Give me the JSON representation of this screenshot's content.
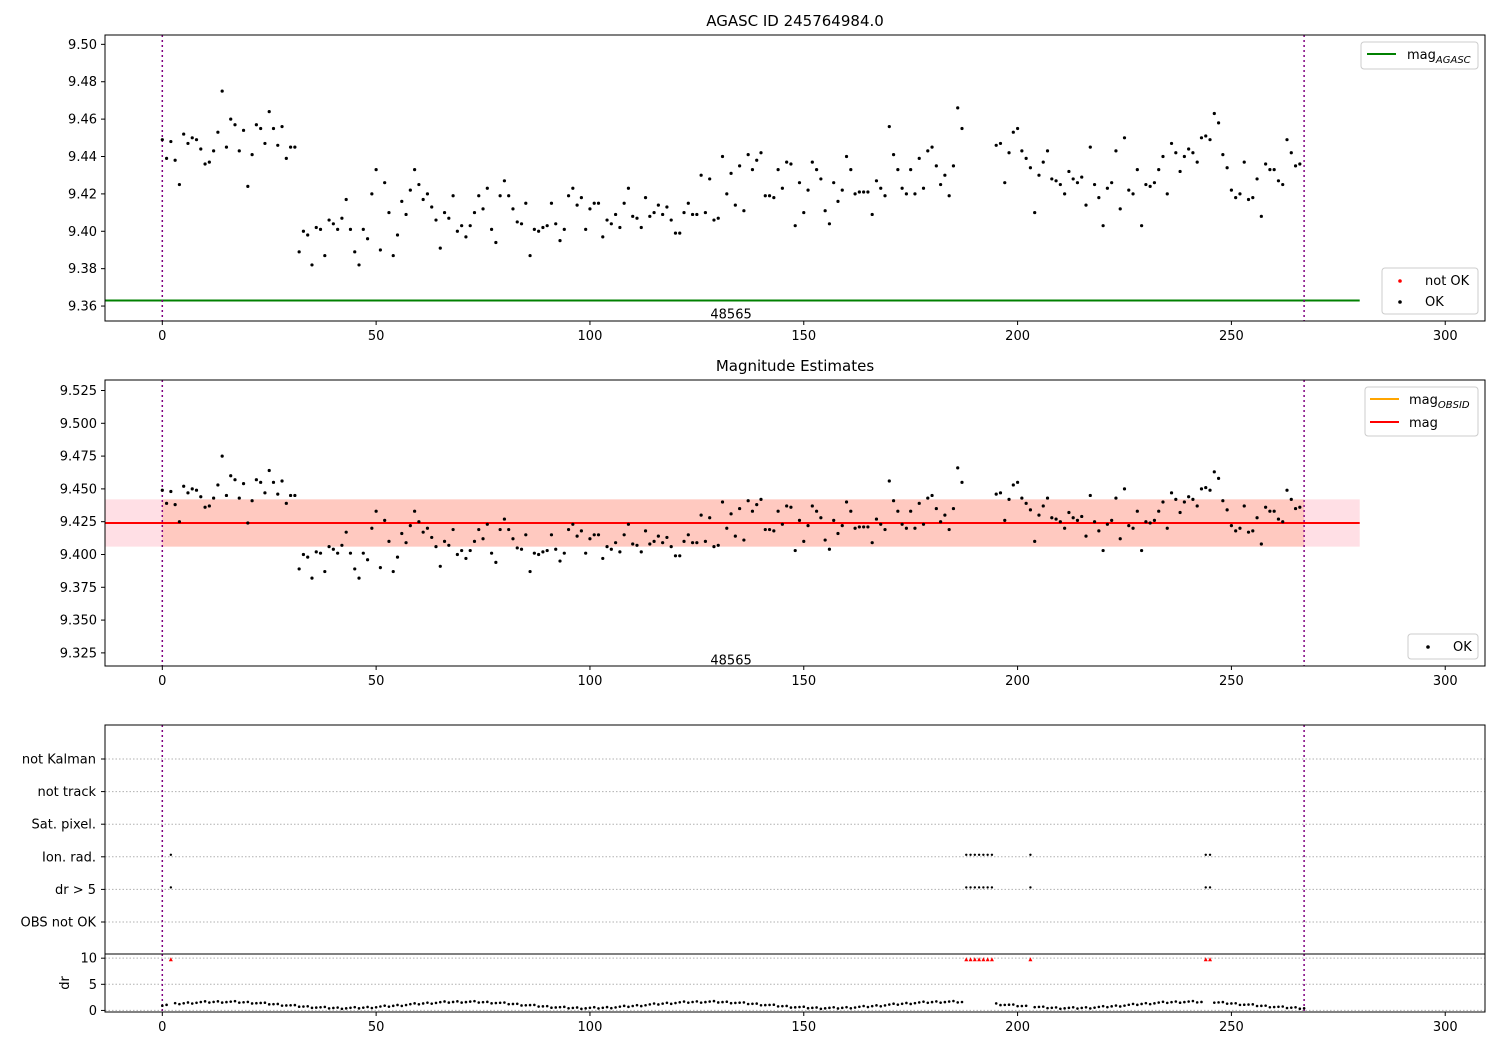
{
  "chart_data": [
    {
      "type": "scatter",
      "title": "AGASC ID 245764984.0",
      "xlim": [
        -13.4,
        309.3
      ],
      "ylim": [
        9.352,
        9.505
      ],
      "xticks": [
        0,
        50,
        100,
        150,
        200,
        250,
        300
      ],
      "yticks": [
        9.36,
        9.38,
        9.4,
        9.42,
        9.44,
        9.46,
        9.48,
        9.5
      ],
      "ytick_decimals": 2,
      "vlines": [
        0,
        267
      ],
      "obsid_label": {
        "text": "48565",
        "x": 133,
        "y": 9.356
      },
      "legend_lines": [
        {
          "label": "mag",
          "sub": "AGASC",
          "color": "#008000"
        }
      ],
      "legend_points": [
        {
          "label": "not OK",
          "color": "#ff0000"
        },
        {
          "label": "OK",
          "color": "#000000"
        }
      ],
      "hline": {
        "y": 9.363,
        "x0": -13.4,
        "x1": 280,
        "color": "#008000"
      },
      "series": [
        {
          "name": "OK",
          "color": "#000000",
          "y": [
            9.449,
            9.439,
            9.448,
            9.438,
            9.425,
            9.452,
            9.447,
            9.45,
            9.449,
            9.444,
            9.436,
            9.437,
            9.443,
            9.453,
            9.475,
            9.445,
            9.46,
            9.457,
            9.443,
            9.454,
            9.424,
            9.441,
            9.457,
            9.455,
            9.447,
            9.464,
            9.455,
            9.446,
            9.456,
            9.439,
            9.445,
            9.445,
            9.389,
            9.4,
            9.398,
            9.382,
            9.402,
            9.401,
            9.387,
            9.406,
            9.404,
            9.401,
            9.407,
            9.417,
            9.401,
            9.389,
            9.382,
            9.401,
            9.396,
            9.42,
            9.433,
            9.39,
            9.426,
            9.41,
            9.387,
            9.398,
            9.416,
            9.409,
            9.422,
            9.433,
            9.425,
            9.417,
            9.42,
            9.413,
            9.406,
            9.391,
            9.41,
            9.407,
            9.419,
            9.4,
            9.403,
            9.397,
            9.403,
            9.41,
            9.419,
            9.412,
            9.423,
            9.401,
            9.394,
            9.419,
            9.427,
            9.419,
            9.412,
            9.405,
            9.404,
            9.415,
            9.387,
            9.401,
            9.4,
            9.402,
            9.403,
            9.415,
            9.404,
            9.395,
            9.401,
            9.419,
            9.423,
            9.414,
            9.418,
            9.401,
            9.412,
            9.415,
            9.415,
            9.397,
            9.406,
            9.404,
            9.409,
            9.402,
            9.415,
            9.423,
            9.408,
            9.407,
            9.402,
            9.418,
            9.408,
            9.41,
            9.414,
            9.409,
            9.413,
            9.406,
            9.399,
            9.399,
            9.41,
            9.415,
            9.409,
            9.409,
            9.43,
            9.41,
            9.428,
            9.406,
            9.407,
            9.44,
            9.42,
            9.431,
            9.414,
            9.435,
            9.411,
            9.441,
            9.433,
            9.438,
            9.442,
            9.419,
            9.419,
            9.418,
            9.433,
            9.423,
            9.437,
            9.436,
            9.403,
            9.426,
            9.41,
            9.422,
            9.437,
            9.433,
            9.428,
            9.411,
            9.404,
            9.426,
            9.416,
            9.422,
            9.44,
            9.433,
            9.42,
            9.421,
            9.421,
            9.421,
            9.409,
            9.427,
            9.423,
            9.419,
            9.456,
            9.441,
            9.433,
            9.423,
            9.42,
            9.433,
            9.42,
            9.439,
            9.423,
            9.443,
            9.445,
            9.435,
            9.425,
            9.43,
            9.419,
            9.435,
            9.466,
            9.455
          ]
        },
        {
          "name": "OK2",
          "color": "#000000",
          "x0": 195,
          "y": [
            9.446,
            9.447,
            9.426,
            9.442,
            9.453,
            9.455,
            9.443,
            9.439,
            9.434,
            9.41,
            9.43,
            9.437,
            9.443,
            9.428,
            9.427,
            9.425,
            9.42,
            9.432,
            9.428,
            9.426,
            9.429,
            9.414,
            9.445,
            9.425,
            9.418,
            9.403,
            9.423,
            9.426,
            9.443,
            9.412,
            9.45,
            9.422,
            9.42,
            9.433,
            9.403,
            9.425,
            9.424,
            9.426,
            9.433,
            9.44,
            9.42,
            9.447,
            9.442,
            9.432,
            9.44,
            9.444,
            9.442,
            9.437,
            9.45,
            9.451,
            9.449,
            9.463,
            9.458,
            9.441,
            9.434,
            9.422,
            9.418,
            9.42,
            9.437,
            9.417,
            9.418,
            9.428,
            9.408,
            9.436,
            9.433,
            9.433,
            9.427,
            9.425,
            9.449,
            9.442,
            9.435,
            9.436
          ]
        }
      ]
    },
    {
      "type": "scatter",
      "title": "Magnitude Estimates",
      "xlim": [
        -13.4,
        309.3
      ],
      "ylim": [
        9.315,
        9.533
      ],
      "xticks": [
        0,
        50,
        100,
        150,
        200,
        250,
        300
      ],
      "yticks": [
        9.325,
        9.35,
        9.375,
        9.4,
        9.425,
        9.45,
        9.475,
        9.5,
        9.525
      ],
      "ytick_decimals": 3,
      "vlines": [
        0,
        267
      ],
      "obsid_label": {
        "text": "48565",
        "x": 133,
        "y": 9.32
      },
      "legend_lines": [
        {
          "label": "mag",
          "sub": "OBSID",
          "color": "#ffa500"
        },
        {
          "label": "mag",
          "sub": "",
          "color": "#ff0000"
        }
      ],
      "legend_points": [
        {
          "label": "OK",
          "color": "#000000"
        }
      ],
      "band_wide": {
        "y0": 9.406,
        "y1": 9.442,
        "x0": -13.4,
        "x1": 280,
        "color": "#ffc0cb",
        "opacity": 0.5
      },
      "band_obs": {
        "y0": 9.406,
        "y1": 9.442,
        "x0": 0,
        "x1": 267,
        "color": "#ffa07a",
        "opacity": 0.35
      },
      "hline": {
        "y": 9.424,
        "x0": -13.4,
        "x1": 280,
        "color": "#ff0000"
      }
    },
    {
      "type": "scatter",
      "xlim": [
        -13.4,
        309.3
      ],
      "flags": [
        "not Kalman",
        "not track",
        "Sat. pixel.",
        "Ion. rad.",
        "dr > 5",
        "OBS not OK"
      ],
      "flag_points": {
        "Ion. rad.": [
          2,
          188,
          189,
          190,
          191,
          192,
          193,
          194,
          203,
          244,
          245
        ],
        "dr > 5": [
          2,
          188,
          189,
          190,
          191,
          192,
          193,
          194,
          203,
          244,
          245
        ]
      },
      "vlines": [
        0,
        267
      ]
    },
    {
      "type": "scatter",
      "xlim": [
        -13.4,
        309.3
      ],
      "ylim": [
        -0.3,
        10.8
      ],
      "xticks": [
        0,
        50,
        100,
        150,
        200,
        250,
        300
      ],
      "yticks": [
        0,
        5,
        10
      ],
      "ylabel": "dr",
      "vlines": [
        0,
        267
      ],
      "red_points_x": [
        2,
        188,
        189,
        190,
        191,
        192,
        193,
        194,
        203,
        244,
        245
      ],
      "red_points_y": 9.8
    }
  ]
}
